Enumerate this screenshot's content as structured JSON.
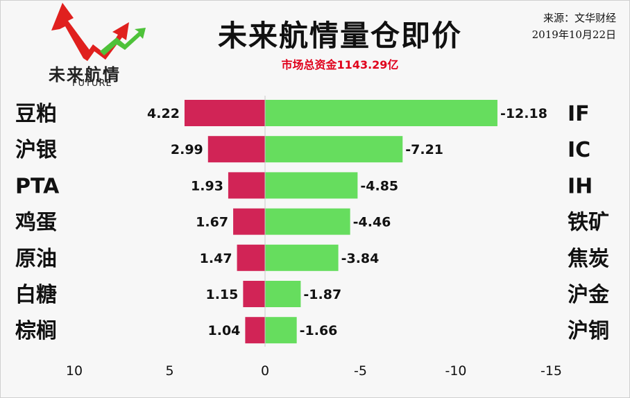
{
  "header": {
    "title": "未来航情量仓即价",
    "subtitle": "市场总资金1143.29亿",
    "source": "来源：文华财经",
    "date": "2019年10月22日",
    "logo_text": "未来航情",
    "logo_sub": "FUTURE"
  },
  "colors": {
    "left_bar": "#d12456",
    "right_bar": "#66dd5e",
    "logo_red": "#e0201e",
    "logo_green": "#4ec23a"
  },
  "chart_data": {
    "type": "bar",
    "orientation": "horizontal-diverging",
    "xlim": [
      10,
      -15
    ],
    "ticks": [
      10,
      5,
      0,
      -5,
      -10,
      -15
    ],
    "tick_labels": [
      "10",
      "5",
      "0",
      "-5",
      "-10",
      "-15"
    ],
    "grid": false,
    "left_categories": [
      "豆粕",
      "沪银",
      "PTA",
      "鸡蛋",
      "原油",
      "白糖",
      "棕榈"
    ],
    "left_values": [
      4.22,
      2.99,
      1.93,
      1.67,
      1.47,
      1.15,
      1.04
    ],
    "left_labels": [
      "4.22",
      "2.99",
      "1.93",
      "1.67",
      "1.47",
      "1.15",
      "1.04"
    ],
    "right_categories": [
      "IF",
      "IC",
      "IH",
      "铁矿",
      "焦炭",
      "沪金",
      "沪铜"
    ],
    "right_values": [
      -12.18,
      -7.21,
      -4.85,
      -4.46,
      -3.84,
      -1.87,
      -1.66
    ],
    "right_labels": [
      "-12.18",
      "-7.21",
      "-4.85",
      "-4.46",
      "-3.84",
      "-1.87",
      "-1.66"
    ]
  }
}
